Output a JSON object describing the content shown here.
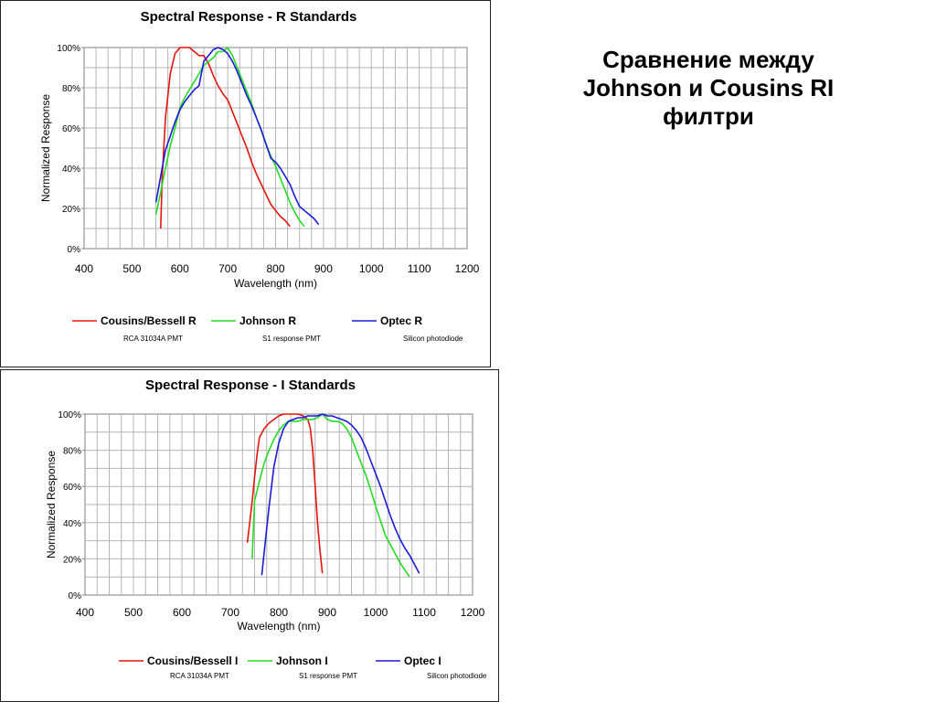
{
  "heading": {
    "line1": "Сравнение между",
    "line2": "Johnson и Cousins RI",
    "line3": "филтри"
  },
  "chart_data": [
    {
      "type": "line",
      "title": "Spectral Response - R Standards",
      "xlabel": "Wavelength (nm)",
      "ylabel": "Normalized Response",
      "xlim": [
        400,
        1200
      ],
      "ylim": [
        0,
        100
      ],
      "xticks": [
        400,
        500,
        600,
        700,
        800,
        900,
        1000,
        1100,
        1200
      ],
      "yticks": [
        "0%",
        "20%",
        "40%",
        "60%",
        "80%",
        "100%"
      ],
      "grid": true,
      "legend_position": "bottom",
      "series": [
        {
          "name": "Cousins/Bessell R",
          "note": "RCA 31034A  PMT",
          "color": "#e8140c",
          "x": [
            560,
            563,
            570,
            580,
            590,
            600,
            610,
            620,
            630,
            640,
            650,
            660,
            670,
            680,
            690,
            700,
            710,
            720,
            730,
            740,
            750,
            760,
            770,
            780,
            790,
            800,
            810,
            820,
            830
          ],
          "y": [
            10,
            35,
            65,
            87,
            97,
            100,
            100,
            100,
            98,
            96,
            96,
            92,
            86,
            81,
            77,
            74,
            68,
            62,
            56,
            50,
            43,
            37,
            32,
            27,
            22,
            19,
            16,
            14,
            11
          ]
        },
        {
          "name": "Johnson R",
          "note": "S1 response PMT",
          "color": "#22dd22",
          "x": [
            550,
            560,
            570,
            580,
            590,
            600,
            610,
            620,
            630,
            640,
            650,
            660,
            670,
            680,
            690,
            700,
            710,
            720,
            730,
            740,
            750,
            760,
            770,
            780,
            790,
            800,
            810,
            820,
            830,
            840,
            850,
            860
          ],
          "y": [
            17,
            28,
            40,
            51,
            60,
            70,
            75,
            79,
            83,
            87,
            91,
            93,
            95,
            98,
            98,
            100,
            96,
            90,
            84,
            78,
            72,
            65,
            59,
            52,
            46,
            41,
            35,
            29,
            23,
            18,
            14,
            11
          ]
        },
        {
          "name": "Optec R",
          "note": "Silicon photodiode",
          "color": "#1a1adb",
          "x": [
            550,
            560,
            570,
            580,
            590,
            600,
            610,
            620,
            630,
            640,
            650,
            660,
            670,
            680,
            690,
            700,
            710,
            720,
            730,
            740,
            750,
            760,
            770,
            780,
            790,
            800,
            810,
            820,
            830,
            840,
            850,
            860,
            870,
            880,
            890
          ],
          "y": [
            23,
            36,
            49,
            56,
            63,
            69,
            73,
            76,
            79,
            81,
            93,
            96,
            99,
            100,
            99,
            97,
            93,
            88,
            82,
            76,
            71,
            65,
            59,
            52,
            45,
            43,
            40,
            36,
            32,
            26,
            21,
            19,
            17,
            15,
            12
          ]
        }
      ]
    },
    {
      "type": "line",
      "title": "Spectral Response - I Standards",
      "xlabel": "Wavelength (nm)",
      "ylabel": "Normalized Response",
      "xlim": [
        400,
        1200
      ],
      "ylim": [
        0,
        100
      ],
      "xticks": [
        400,
        500,
        600,
        700,
        800,
        900,
        1000,
        1100,
        1200
      ],
      "yticks": [
        "0%",
        "20%",
        "40%",
        "60%",
        "80%",
        "100%"
      ],
      "grid": true,
      "legend_position": "bottom",
      "series": [
        {
          "name": "Cousins/Bessell I",
          "note": "RCA 31034A  PMT",
          "color": "#e8140c",
          "x": [
            735,
            740,
            745,
            750,
            755,
            760,
            770,
            780,
            790,
            800,
            810,
            820,
            830,
            840,
            850,
            860,
            865,
            870,
            875,
            880,
            885,
            890
          ],
          "y": [
            29,
            40,
            52,
            65,
            77,
            87,
            92,
            95,
            97,
            99,
            100,
            100,
            100,
            100,
            99,
            97,
            92,
            80,
            60,
            40,
            25,
            12
          ]
        },
        {
          "name": "Johnson I",
          "note": "S1 response PMT",
          "color": "#22dd22",
          "x": [
            745,
            750,
            760,
            770,
            780,
            790,
            800,
            810,
            820,
            830,
            840,
            850,
            860,
            870,
            880,
            890,
            900,
            910,
            920,
            930,
            940,
            950,
            960,
            970,
            980,
            990,
            1000,
            1010,
            1020,
            1030,
            1040,
            1050,
            1060,
            1070
          ],
          "y": [
            20,
            52,
            63,
            73,
            80,
            86,
            91,
            94,
            96,
            96,
            96,
            97,
            97,
            97,
            98,
            100,
            97,
            96,
            96,
            95,
            92,
            87,
            80,
            73,
            66,
            58,
            49,
            41,
            33,
            28,
            23,
            18,
            14,
            10
          ]
        },
        {
          "name": "Optec I",
          "note": "Silicon photodiode",
          "color": "#1a1adb",
          "x": [
            765,
            770,
            780,
            790,
            800,
            810,
            820,
            830,
            840,
            850,
            860,
            870,
            880,
            890,
            900,
            910,
            920,
            930,
            940,
            950,
            960,
            970,
            980,
            990,
            1000,
            1010,
            1020,
            1030,
            1040,
            1050,
            1060,
            1070,
            1080,
            1090
          ],
          "y": [
            11,
            24,
            49,
            71,
            84,
            92,
            96,
            97,
            98,
            98,
            99,
            99,
            99,
            100,
            99,
            99,
            98,
            97,
            96,
            94,
            91,
            87,
            81,
            74,
            67,
            60,
            52,
            44,
            37,
            31,
            26,
            22,
            17,
            12
          ]
        }
      ]
    }
  ]
}
